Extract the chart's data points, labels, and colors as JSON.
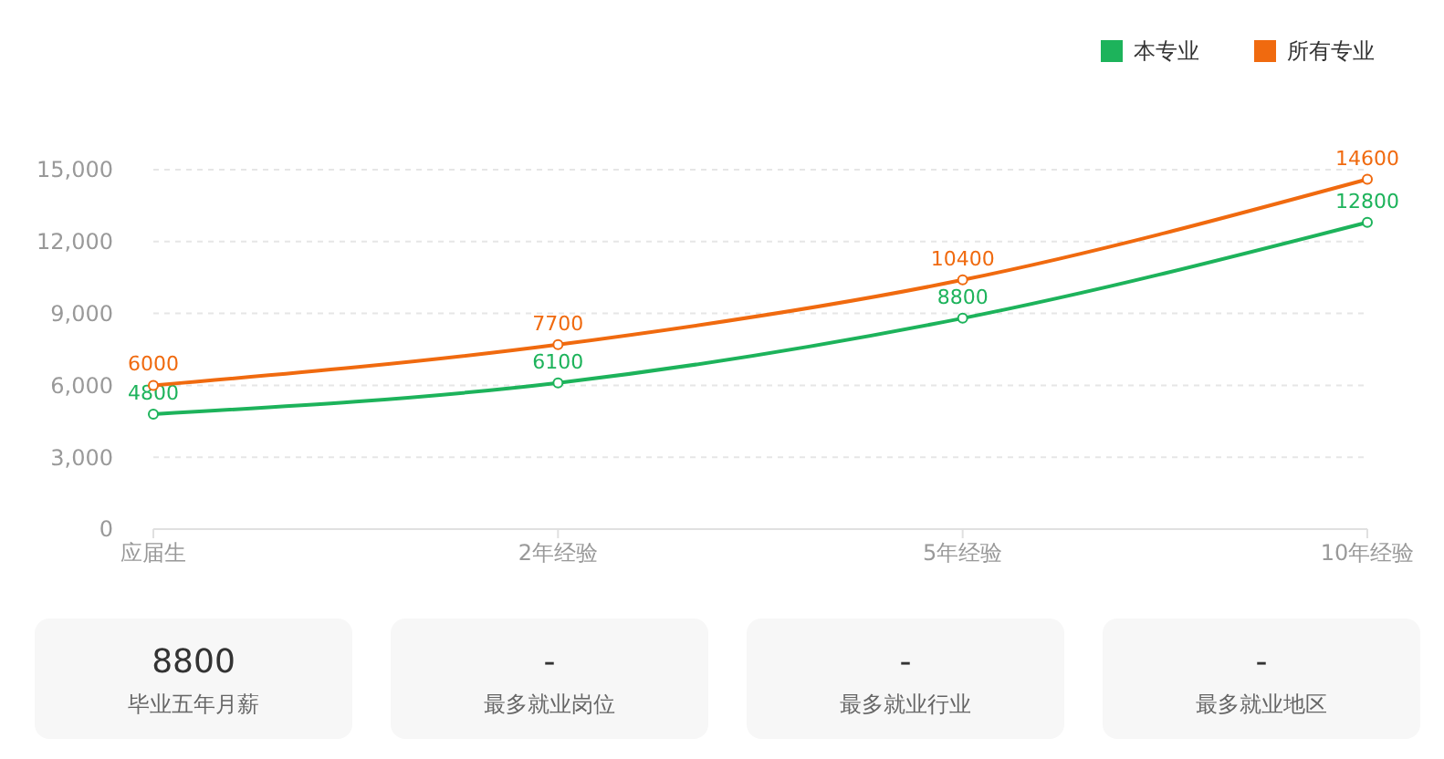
{
  "chart_data": {
    "type": "line",
    "categories": [
      "应届生",
      "2年经验",
      "5年经验",
      "10年经验"
    ],
    "series": [
      {
        "name": "本专业",
        "color": "#1db35b",
        "values": [
          4800,
          6100,
          8800,
          12800
        ]
      },
      {
        "name": "所有专业",
        "color": "#f06a0f",
        "values": [
          6000,
          7700,
          10400,
          14600
        ]
      }
    ],
    "ylim": [
      0,
      15000
    ],
    "yticks": [
      {
        "value": 0,
        "label": "0"
      },
      {
        "value": 3000,
        "label": "3,000"
      },
      {
        "value": 6000,
        "label": "6,000"
      },
      {
        "value": 9000,
        "label": "9,000"
      },
      {
        "value": 12000,
        "label": "12,000"
      },
      {
        "value": 15000,
        "label": "15,000"
      }
    ],
    "grid": "y",
    "legend": "top right",
    "marker": "circle",
    "data_labels": true,
    "annotations": [
      "8800",
      "毕业五年月薪",
      "-",
      "最多就业岗位",
      "-",
      "最多就业行业",
      "-",
      "最多就业地区"
    ]
  }
}
